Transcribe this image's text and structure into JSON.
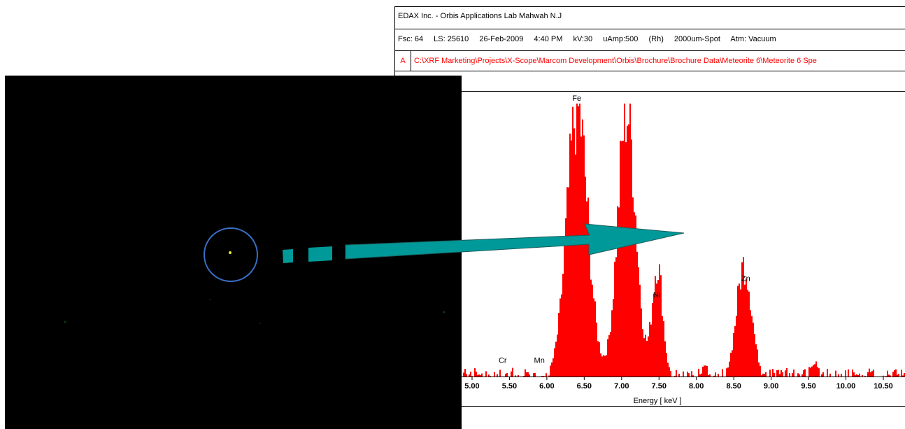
{
  "header": {
    "lab_title": "EDAX Inc. - Orbis Applications Lab Mahwah N.J",
    "params": [
      "Fsc: 64",
      "LS: 25610",
      "26-Feb-2009",
      "4:40 PM",
      "kV:30",
      "uAmp:500",
      "(Rh)",
      "2000um-Spot",
      "Atm: Vacuum"
    ],
    "file_tag": "A",
    "file_path": "C:\\XRF Marketing\\Projects\\X-Scope\\Marcom Development\\Orbis\\Brochure\\Brochure Data\\Meteorite 6\\Meteorite 6 Spe"
  },
  "colors": {
    "spectrum": "#ff0000",
    "arrow": "#009999",
    "circle": "#3a6fc8",
    "photo_bg": "#000000"
  },
  "chart_data": {
    "type": "area",
    "xlabel": "Energy [ keV ]",
    "ylabel": "",
    "xlim": [
      4.86,
      10.79
    ],
    "ticks": [
      "5.00",
      "5.50",
      "6.00",
      "6.50",
      "7.00",
      "7.50",
      "8.00",
      "8.50",
      "9.00",
      "9.50",
      "10.00",
      "10.50"
    ],
    "series": [
      {
        "peaks": [
          {
            "center": 6.4,
            "height": 100,
            "width": 0.14,
            "label": "Fe"
          },
          {
            "center": 7.06,
            "height": 100,
            "width": 0.12,
            "label": ""
          },
          {
            "center": 7.47,
            "height": 42,
            "width": 0.07,
            "label": "Ni"
          },
          {
            "center": 8.63,
            "height": 42,
            "width": 0.1,
            "label": "Zn"
          },
          {
            "center": 9.57,
            "height": 5,
            "width": 0.08,
            "label": ""
          },
          {
            "center": 8.12,
            "height": 4,
            "width": 0.06,
            "label": ""
          }
        ]
      }
    ],
    "element_labels": [
      {
        "label": "Fe",
        "x": 6.4,
        "y": 100
      },
      {
        "label": "Ni",
        "x": 7.47,
        "y": 28
      },
      {
        "label": "Zn",
        "x": 8.66,
        "y": 34
      },
      {
        "label": "Cr",
        "x": 5.41,
        "y": 4
      },
      {
        "label": "Mn",
        "x": 5.9,
        "y": 4
      }
    ]
  }
}
